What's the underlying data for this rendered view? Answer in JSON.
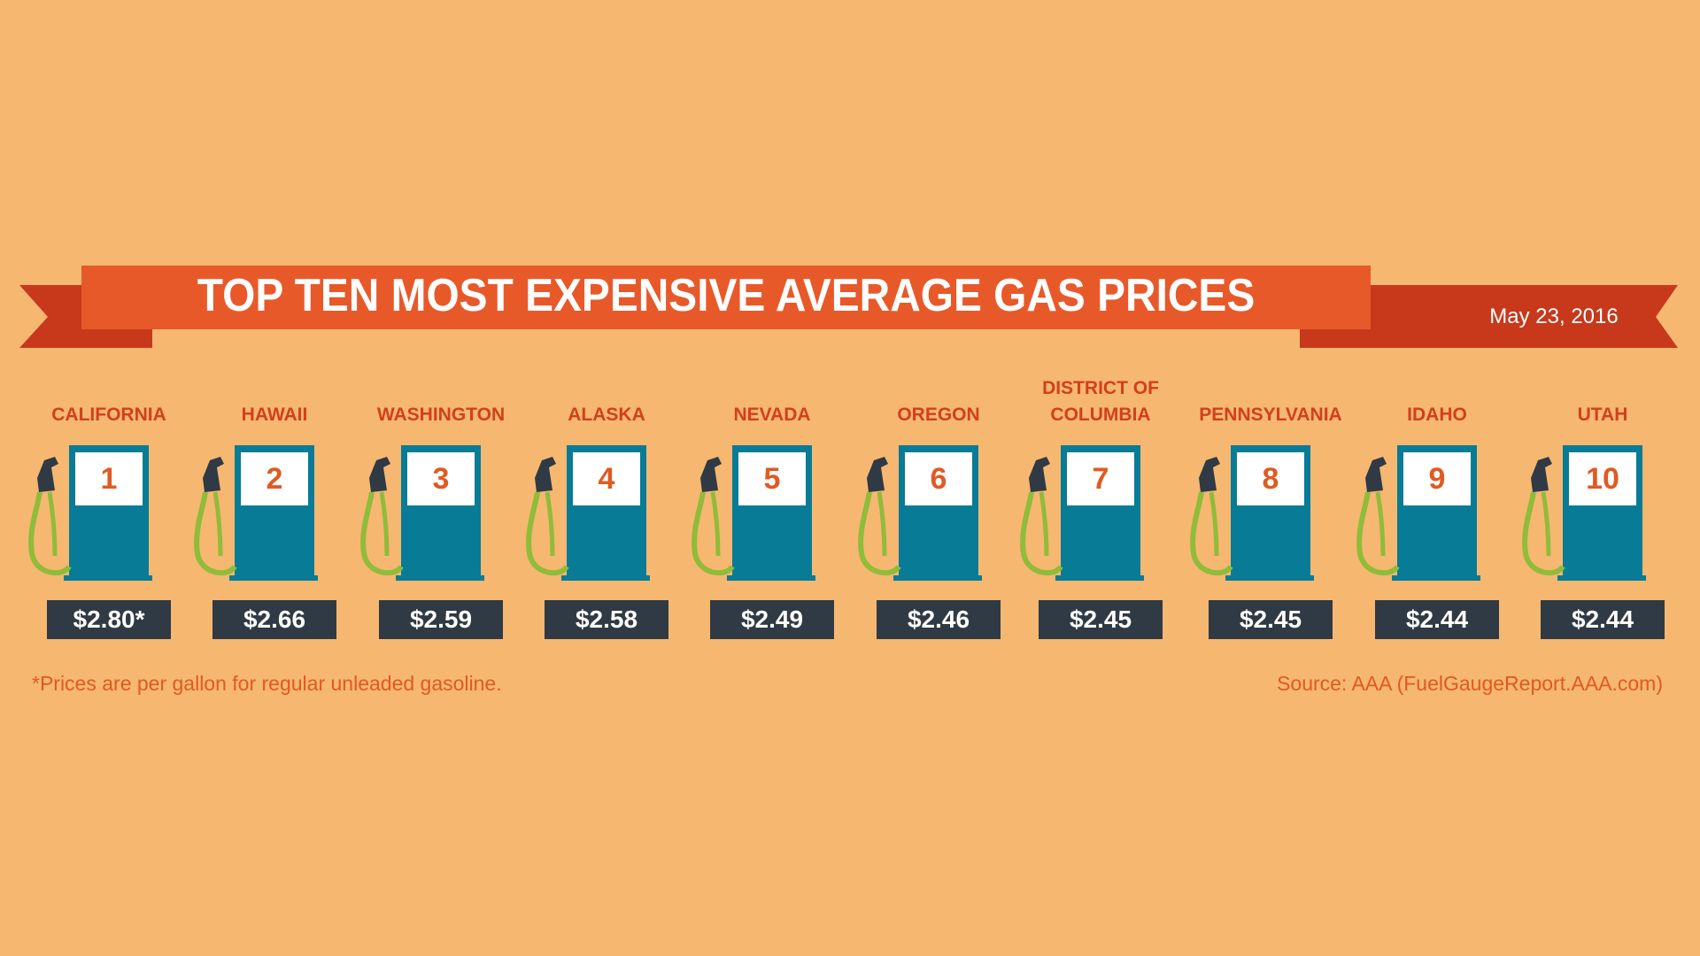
{
  "title": "TOP TEN MOST EXPENSIVE AVERAGE GAS PRICES",
  "date": "May 23, 2016",
  "footnote": "*Prices are per gallon for regular unleaded gasoline.",
  "source": "Source: AAA (FuelGaugeReport.AAA.com)",
  "colors": {
    "background": "#f6b771",
    "ribbon": "#e8592a",
    "ribbon_dark": "#c8381b",
    "pump": "#087b96",
    "hose": "#8fbc3a",
    "nozzle": "#2f3a44",
    "price_box": "#2f3a44",
    "state_text": "#d2401b",
    "rank_text": "#e05a22"
  },
  "icons": [
    "gas-pump-icon",
    "fuel-nozzle-icon",
    "fuel-hose-icon"
  ],
  "chart_data": {
    "type": "table",
    "title": "TOP TEN MOST EXPENSIVE AVERAGE GAS PRICES",
    "columns": [
      "rank",
      "state",
      "price"
    ],
    "rows": [
      {
        "rank": "1",
        "state": [
          "CALIFORNIA"
        ],
        "price_label": "$2.80*",
        "price": 2.8
      },
      {
        "rank": "2",
        "state": [
          "HAWAII"
        ],
        "price_label": "$2.66",
        "price": 2.66
      },
      {
        "rank": "3",
        "state": [
          "WASHINGTON"
        ],
        "price_label": "$2.59",
        "price": 2.59
      },
      {
        "rank": "4",
        "state": [
          "ALASKA"
        ],
        "price_label": "$2.58",
        "price": 2.58
      },
      {
        "rank": "5",
        "state": [
          "NEVADA"
        ],
        "price_label": "$2.49",
        "price": 2.49
      },
      {
        "rank": "6",
        "state": [
          "OREGON"
        ],
        "price_label": "$2.46",
        "price": 2.46
      },
      {
        "rank": "7",
        "state": [
          "DISTRICT OF",
          "COLUMBIA"
        ],
        "price_label": "$2.45",
        "price": 2.45
      },
      {
        "rank": "8",
        "state": [
          "PENNSYLVANIA"
        ],
        "price_label": "$2.45",
        "price": 2.45
      },
      {
        "rank": "9",
        "state": [
          "IDAHO"
        ],
        "price_label": "$2.44",
        "price": 2.44
      },
      {
        "rank": "10",
        "state": [
          "UTAH"
        ],
        "price_label": "$2.44",
        "price": 2.44
      }
    ]
  }
}
